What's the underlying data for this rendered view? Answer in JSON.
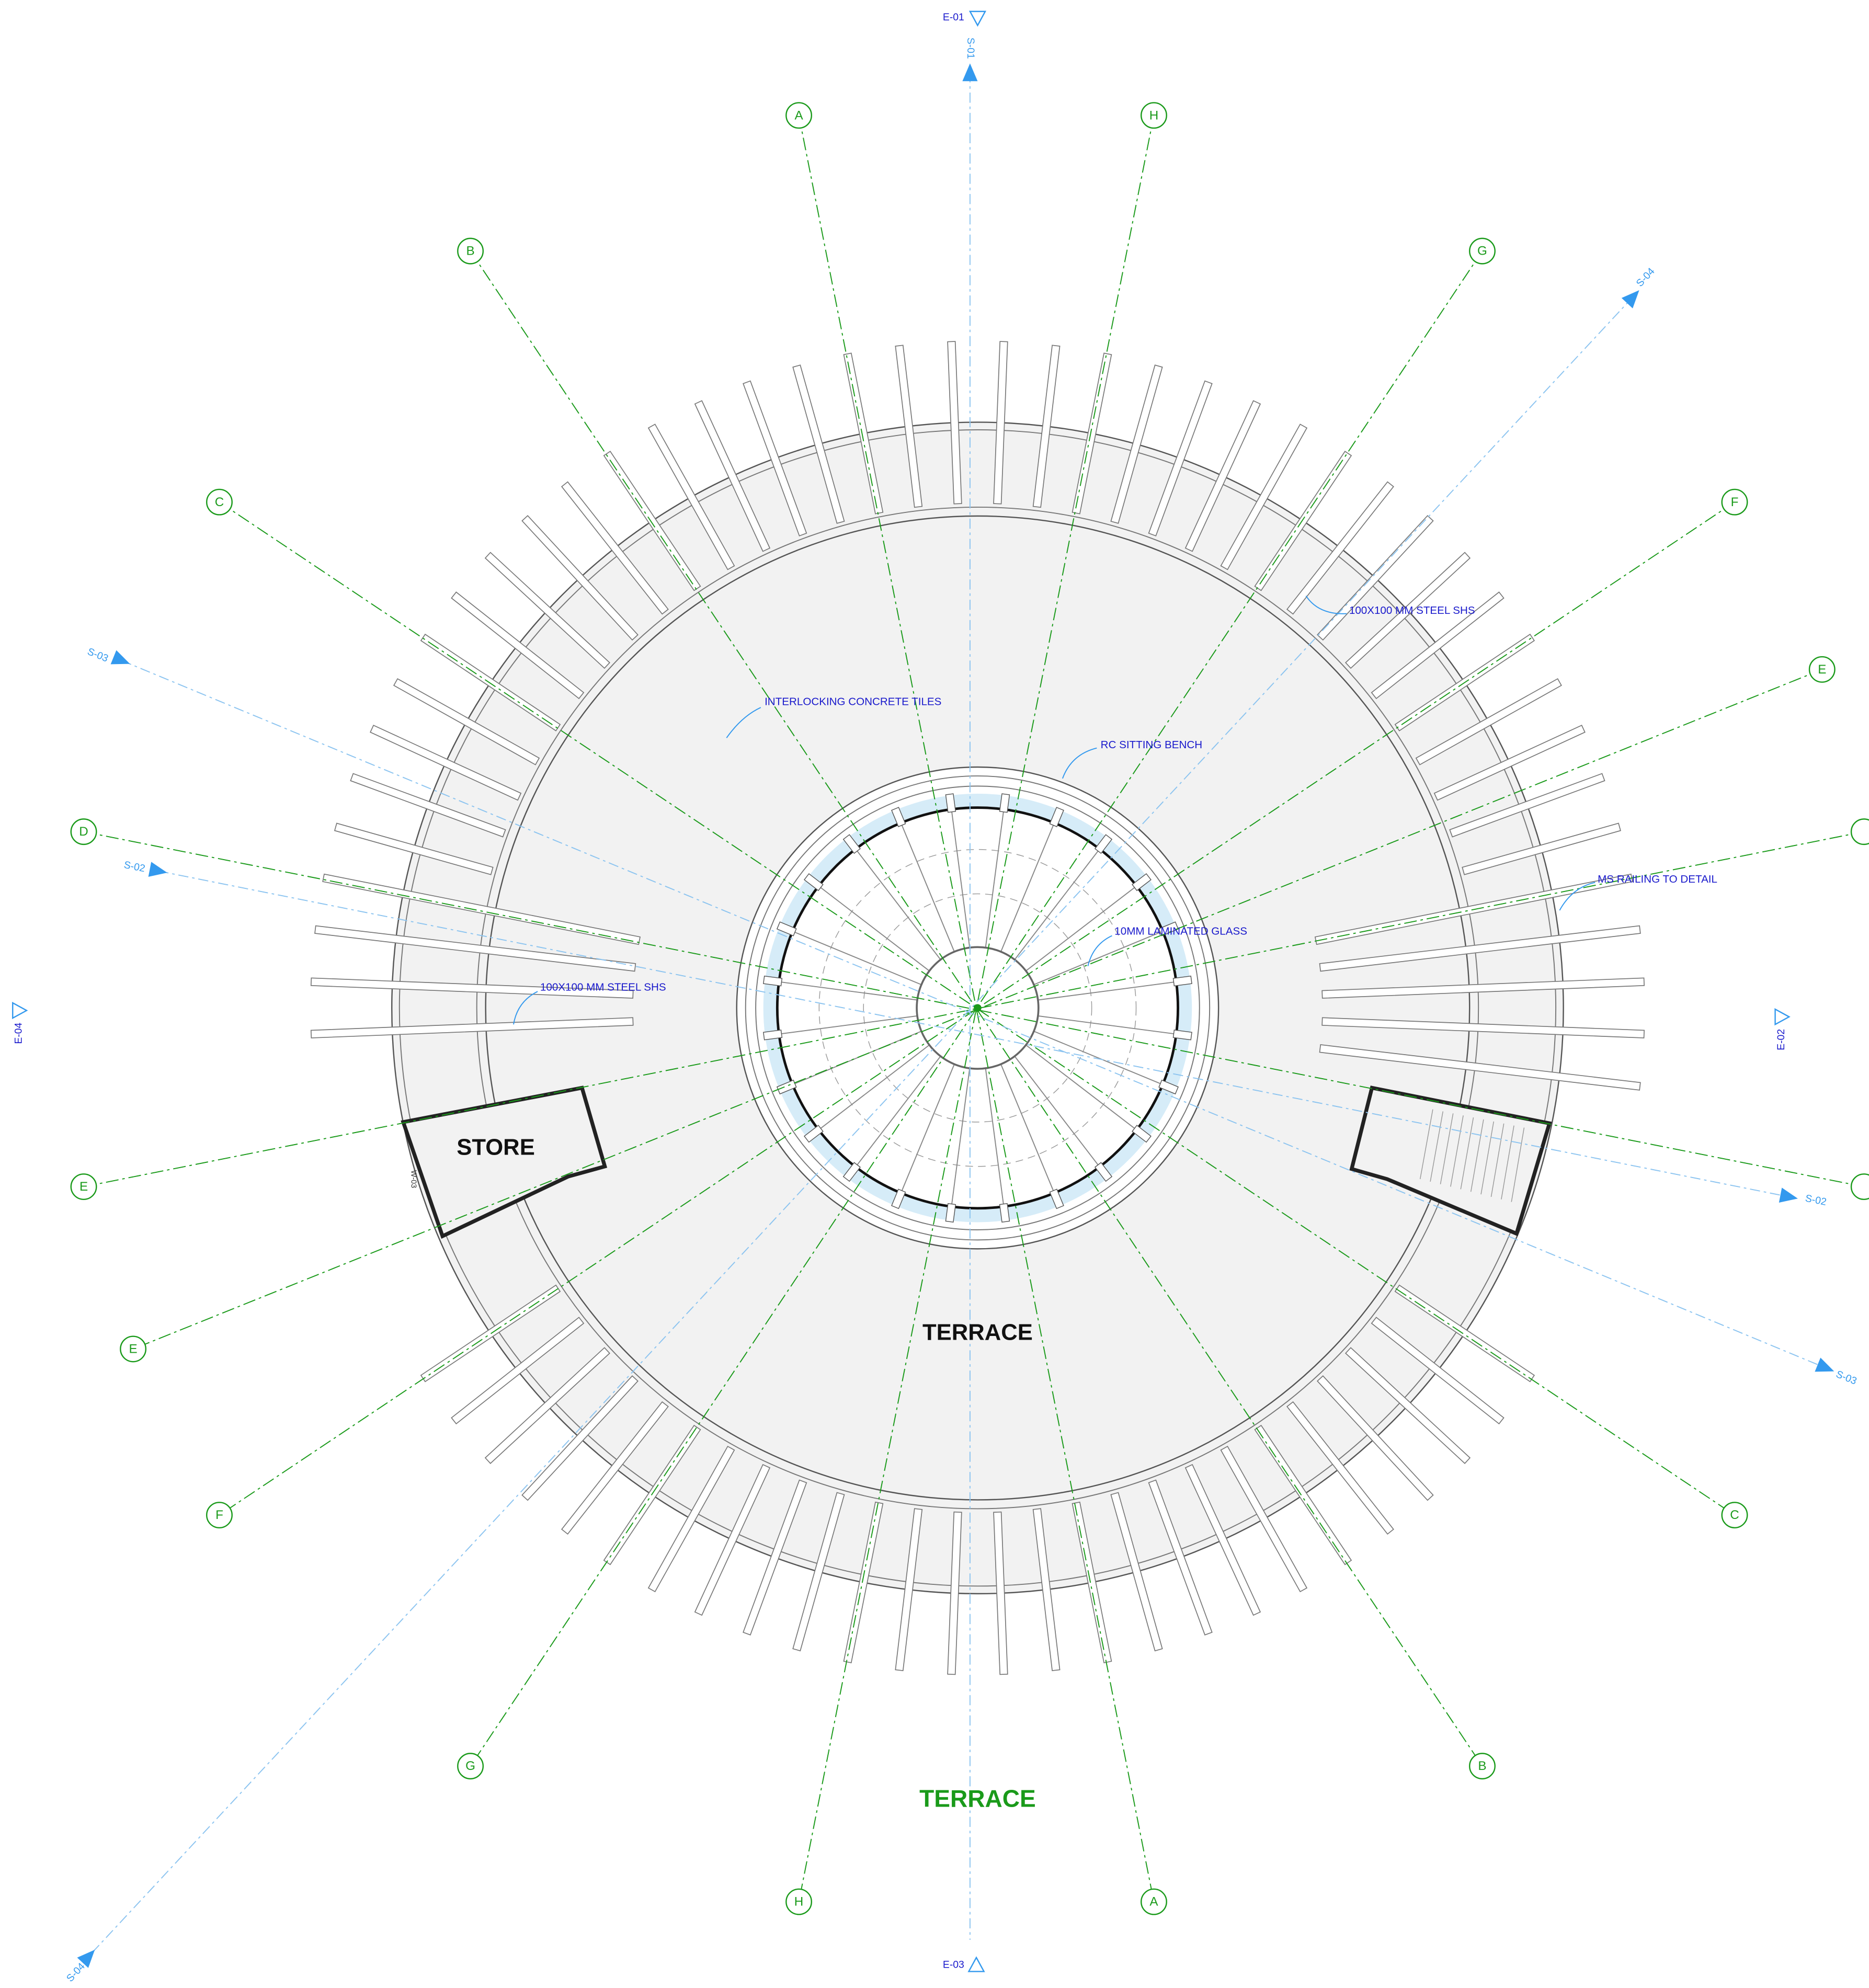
{
  "drawing": {
    "title": "TERRACE",
    "room_labels": {
      "store": "STORE",
      "terrace": "TERRACE"
    },
    "wall_tag": "W-03",
    "grid_bubbles": [
      "A",
      "H",
      "B",
      "G",
      "C",
      "F",
      "E",
      "D",
      "E",
      "E",
      "F",
      "C",
      "G",
      "B",
      "H",
      "A"
    ],
    "section_marks": [
      "S-01",
      "S-02",
      "S-02",
      "S-03",
      "S-03",
      "S-04",
      "S-04"
    ],
    "elevation_marks": [
      "E-01",
      "E-02",
      "E-03",
      "E-04"
    ],
    "annotations": [
      "INTERLOCKING CONCRETE TILES",
      "RC SITTING BENCH",
      "100X100 MM STEEL SHS",
      "MS RAILING TO DETAIL",
      "10MM LAMINATED GLASS",
      "100X100 MM STEEL SHS"
    ]
  }
}
